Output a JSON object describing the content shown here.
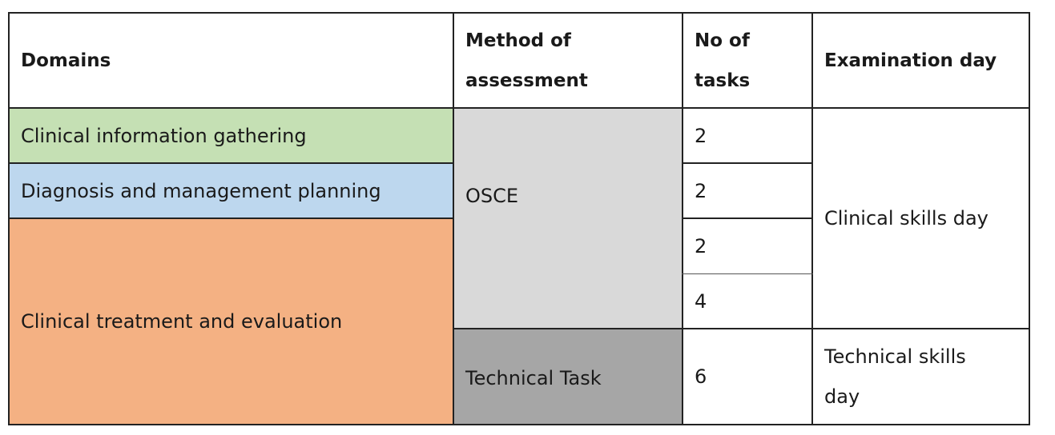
{
  "headers": {
    "domains": "Domains",
    "method": "Method of assessment",
    "tasks": "No of tasks",
    "day": "Examination day"
  },
  "rows": {
    "domain_1": "Clinical information gathering",
    "domain_2": "Diagnosis and management planning",
    "domain_3": "Clinical treatment and evaluation",
    "method_1": "OSCE",
    "method_2": "Technical Task",
    "tasks": [
      "2",
      "2",
      "2",
      "4",
      "6"
    ],
    "day_1": "Clinical skills day",
    "day_2": "Technical skills day"
  },
  "colors": {
    "green": "#c5e0b4",
    "blue": "#bdd7ee",
    "orange": "#f4b183",
    "light_gray": "#d9d9d9",
    "dark_gray": "#a6a6a6"
  }
}
